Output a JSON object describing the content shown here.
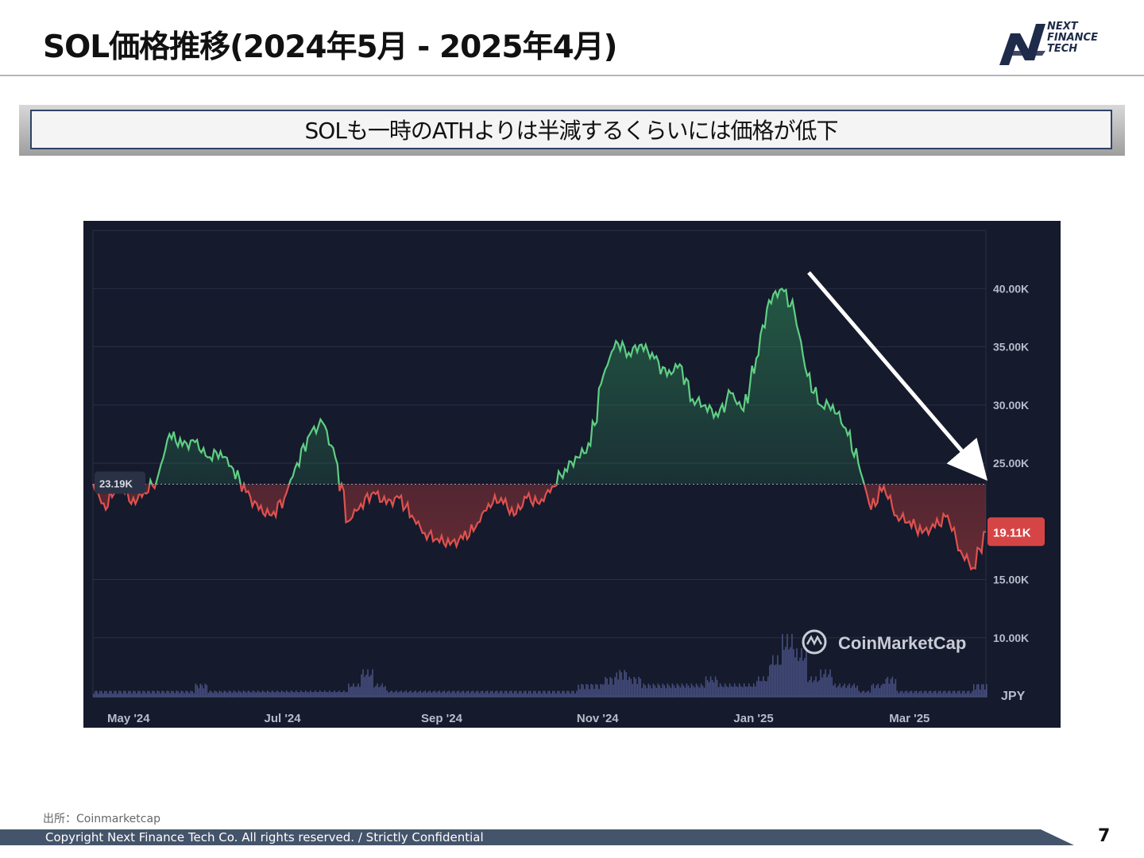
{
  "slide": {
    "title": "SOL価格推移(2024年5月 - 2025年4月)",
    "banner": "SOLも一時のATHよりは半減するくらいには価格が低下",
    "source": "出所：Coinmarketcap",
    "copyright": "Copyright Next Finance Tech Co. All rights reserved. / Strictly Confidential",
    "page_number": "7",
    "logo_lines": [
      "NEXT",
      "FINANCE",
      "TECH"
    ]
  },
  "colors": {
    "chart_bg": "#151a2c",
    "up_line": "#5fcf83",
    "down_line": "#e0514e",
    "badge_current": "#d64545",
    "footer_bar": "#44546a",
    "logo_navy": "#1e2b4a"
  },
  "chart_data": {
    "type": "area",
    "currency_label": "JPY",
    "x_tick_labels": [
      "May '24",
      "Jul '24",
      "Sep '24",
      "Nov '24",
      "Jan '25",
      "Mar '25"
    ],
    "y_tick_labels": [
      "40.00K",
      "35.00K",
      "30.00K",
      "25.00K",
      "15.00K",
      "10.00K"
    ],
    "y_ticks": [
      40000,
      35000,
      30000,
      25000,
      15000,
      10000
    ],
    "ylim": [
      5000,
      45000
    ],
    "baseline_value": 23190,
    "baseline_label": "23.19K",
    "current_value": 19110,
    "current_label": "19.11K",
    "watermark": "CoinMarketCap",
    "x_months": [
      "2024-04-28",
      "2024-05-03",
      "2024-05-08",
      "2024-05-13",
      "2024-05-18",
      "2024-05-23",
      "2024-05-28",
      "2024-06-02",
      "2024-06-07",
      "2024-06-12",
      "2024-06-17",
      "2024-06-22",
      "2024-06-27",
      "2024-07-02",
      "2024-07-07",
      "2024-07-12",
      "2024-07-17",
      "2024-07-22",
      "2024-07-27",
      "2024-08-01",
      "2024-08-06",
      "2024-08-11",
      "2024-08-16",
      "2024-08-21",
      "2024-08-26",
      "2024-08-31",
      "2024-09-05",
      "2024-09-10",
      "2024-09-15",
      "2024-09-20",
      "2024-09-25",
      "2024-09-30",
      "2024-10-05",
      "2024-10-10",
      "2024-10-15",
      "2024-10-20",
      "2024-10-25",
      "2024-10-30",
      "2024-11-04",
      "2024-11-09",
      "2024-11-14",
      "2024-11-19",
      "2024-11-24",
      "2024-11-29",
      "2024-12-04",
      "2024-12-09",
      "2024-12-14",
      "2024-12-19",
      "2024-12-24",
      "2024-12-29",
      "2025-01-03",
      "2025-01-08",
      "2025-01-13",
      "2025-01-18",
      "2025-01-23",
      "2025-01-28",
      "2025-02-02",
      "2025-02-07",
      "2025-02-12",
      "2025-02-17",
      "2025-02-22",
      "2025-02-27",
      "2025-03-04",
      "2025-03-09",
      "2025-03-14",
      "2025-03-19",
      "2025-03-24",
      "2025-03-29",
      "2025-04-03",
      "2025-04-08",
      "2025-04-13"
    ],
    "prices": [
      23200,
      21000,
      23800,
      21500,
      22500,
      23500,
      27500,
      26500,
      26800,
      25500,
      26000,
      24500,
      22500,
      21000,
      20500,
      22000,
      25000,
      27500,
      28500,
      25500,
      20000,
      21500,
      22500,
      21500,
      22000,
      20500,
      19000,
      18500,
      18000,
      18500,
      19500,
      21500,
      22000,
      20500,
      22000,
      21500,
      23000,
      24500,
      25500,
      26500,
      32500,
      35500,
      34500,
      35200,
      34000,
      32500,
      33500,
      30500,
      30000,
      29000,
      31000,
      29500,
      34000,
      39000,
      40000,
      38000,
      32500,
      30000,
      30000,
      28000,
      25000,
      21000,
      23000,
      20500,
      20000,
      19000,
      19500,
      20500,
      17500,
      16000,
      19110
    ],
    "volume": [
      1,
      1,
      1,
      1,
      1,
      1,
      1,
      1,
      2,
      1,
      1,
      1,
      1,
      1,
      1,
      1,
      1,
      1,
      1,
      1,
      2,
      4,
      2,
      1,
      1,
      1,
      1,
      1,
      1,
      1,
      1,
      1,
      1,
      1,
      1,
      1,
      1,
      1,
      2,
      2,
      3,
      4,
      3,
      2,
      2,
      2,
      2,
      2,
      3,
      2,
      2,
      2,
      3,
      6,
      9,
      7,
      3,
      4,
      2,
      2,
      1,
      2,
      3,
      1,
      1,
      1,
      1,
      1,
      1,
      2,
      2
    ]
  }
}
